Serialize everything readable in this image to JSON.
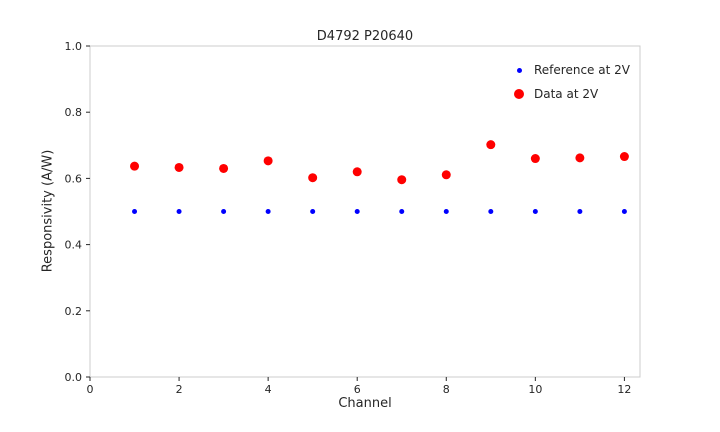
{
  "chart_data": {
    "type": "scatter",
    "title": "D4792 P20640",
    "xlabel": "Channel",
    "ylabel": "Responsivity (A/W)",
    "xlim": [
      0,
      12.35
    ],
    "ylim": [
      0,
      1.0
    ],
    "x_tick_values": [
      0,
      2,
      4,
      6,
      8,
      10,
      12
    ],
    "x_tick_labels": [
      "0",
      "2",
      "4",
      "6",
      "8",
      "10",
      "12"
    ],
    "y_tick_values": [
      0.0,
      0.2,
      0.4,
      0.6,
      0.8,
      1.0
    ],
    "y_tick_labels": [
      "0.0",
      "0.2",
      "0.4",
      "0.6",
      "0.8",
      "1.0"
    ],
    "grid": false,
    "legend_position": "upper right",
    "colors": {
      "frame": "#cccccc",
      "tick": "#262626",
      "text": "#262626"
    },
    "series": [
      {
        "name": "Reference at 2V",
        "color": "#0000ff",
        "marker_radius": 2.5,
        "x": [
          1,
          2,
          3,
          4,
          5,
          6,
          7,
          8,
          9,
          10,
          11,
          12
        ],
        "y": [
          0.5,
          0.5,
          0.5,
          0.5,
          0.5,
          0.5,
          0.5,
          0.5,
          0.5,
          0.5,
          0.5,
          0.5
        ]
      },
      {
        "name": "Data at 2V",
        "color": "#ff0000",
        "marker_radius": 4.5,
        "x": [
          1,
          2,
          3,
          4,
          5,
          6,
          7,
          8,
          9,
          10,
          11,
          12
        ],
        "y": [
          0.637,
          0.633,
          0.63,
          0.653,
          0.602,
          0.62,
          0.596,
          0.611,
          0.702,
          0.66,
          0.662,
          0.666
        ]
      }
    ]
  }
}
